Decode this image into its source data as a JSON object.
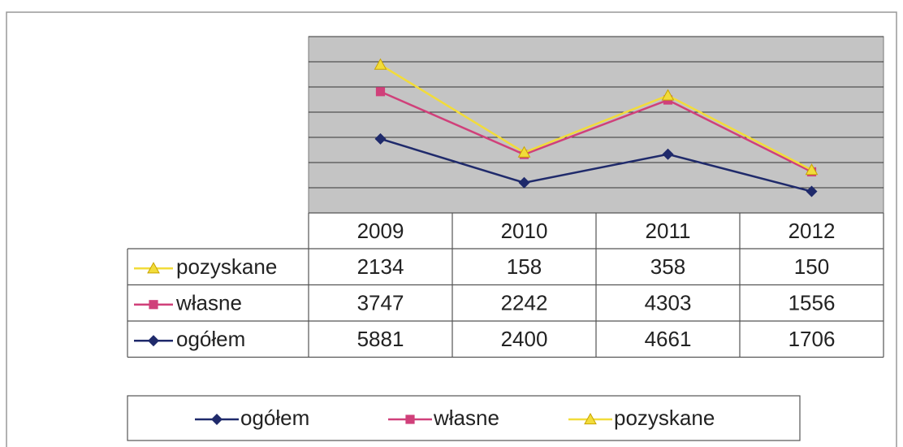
{
  "chart_data": {
    "type": "line",
    "stacked": true,
    "categories": [
      "2009",
      "2010",
      "2011",
      "2012"
    ],
    "series": [
      {
        "name": "ogółem",
        "color": "#1f2a6b",
        "marker": "diamond",
        "values": [
          5881,
          2400,
          4661,
          1706
        ]
      },
      {
        "name": "własne",
        "color": "#d0407a",
        "marker": "square",
        "values": [
          3747,
          2242,
          4303,
          1556
        ]
      },
      {
        "name": "pozyskane",
        "color": "#f2dc3a",
        "marker": "triangle",
        "values": [
          2134,
          158,
          358,
          150
        ]
      }
    ],
    "ylim": [
      0,
      14000
    ],
    "yticks": [
      0,
      2000,
      4000,
      6000,
      8000,
      10000,
      12000,
      14000
    ],
    "grid": true,
    "legend": "bottom"
  }
}
